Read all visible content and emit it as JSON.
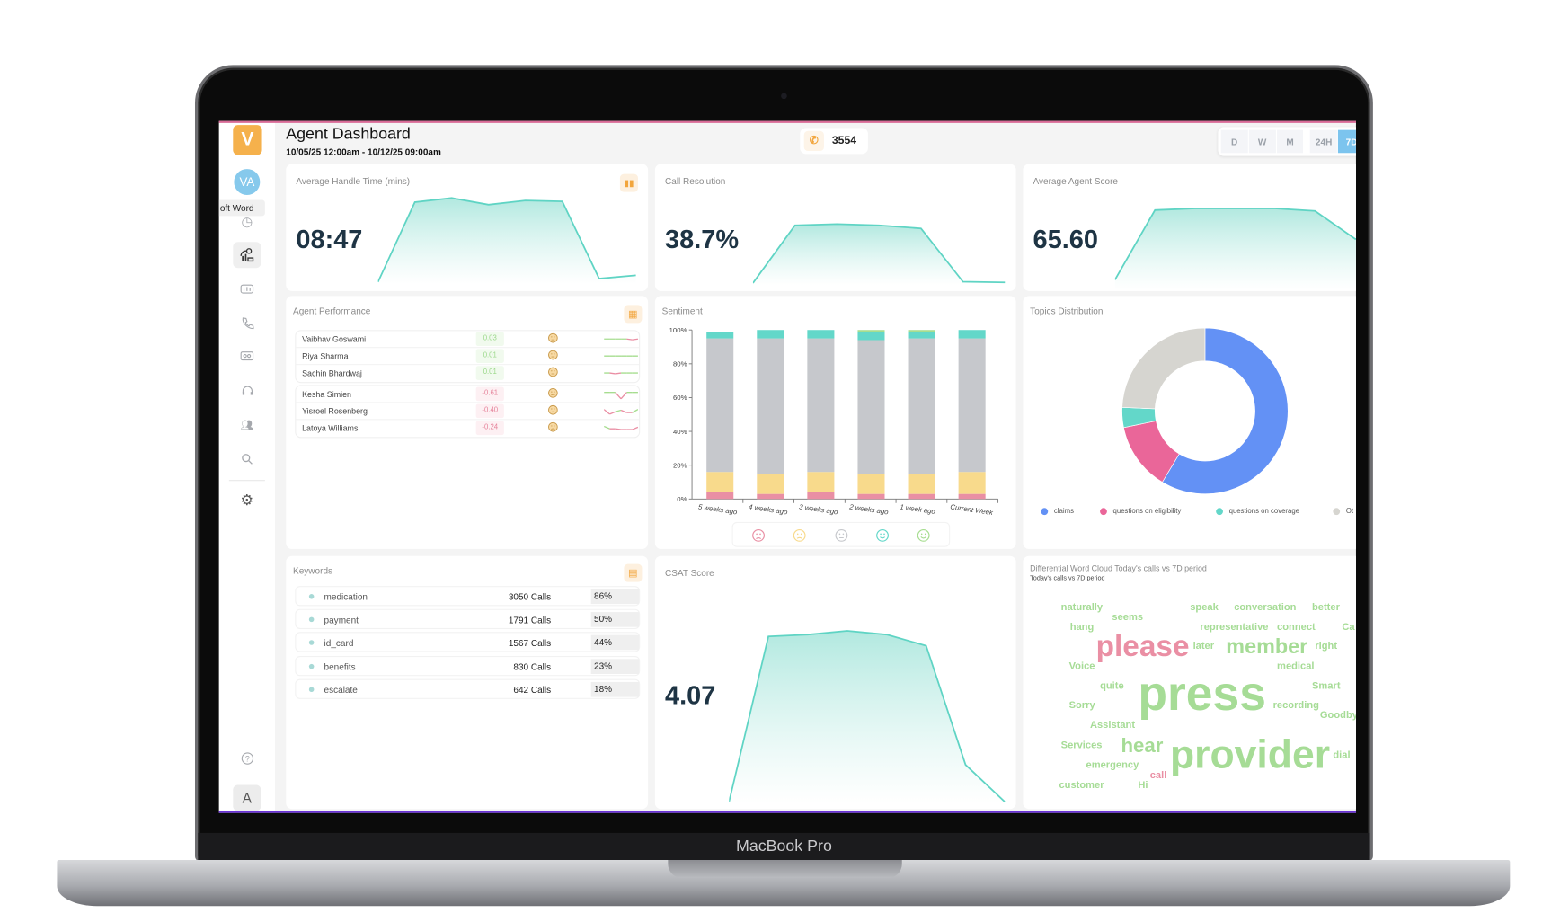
{
  "device": {
    "label": "MacBook Pro"
  },
  "sidebar": {
    "logo": "V",
    "avatar": "VA",
    "tooltip": "oft Word",
    "items": [
      {
        "icon": "clock-icon"
      },
      {
        "icon": "agent-analytics-icon",
        "active": true
      },
      {
        "icon": "chat-analytics-icon"
      },
      {
        "icon": "phone-icon"
      },
      {
        "icon": "voicemail-icon"
      },
      {
        "icon": "headset-icon"
      },
      {
        "icon": "team-icon"
      },
      {
        "icon": "search-icon"
      },
      {
        "icon": "gear-icon"
      }
    ],
    "help_icon": "help-icon",
    "user_initial": "A"
  },
  "header": {
    "title": "Agent Dashboard",
    "date_range": "10/05/25 12:00am - 10/12/25 09:00am",
    "call_count": "3554",
    "ranges": [
      "D",
      "W",
      "M",
      "24H",
      "7D"
    ],
    "active_range": "7D"
  },
  "kpis": [
    {
      "title": "Average Handle Time (mins)",
      "value": "08:47",
      "trend": [
        0,
        95,
        100,
        92,
        97,
        96,
        4,
        8
      ]
    },
    {
      "title": "Call Resolution",
      "value": "38.7%",
      "trend": [
        0,
        93,
        95,
        93,
        88,
        2,
        1
      ]
    },
    {
      "title": "Average Agent Score",
      "value": "65.60",
      "trend": [
        10,
        95,
        97,
        97,
        97,
        94,
        60,
        50
      ]
    }
  ],
  "agent_performance": {
    "title": "Agent Performance",
    "agents": [
      {
        "name": "Vaibhav Goswami",
        "score": "0.03",
        "sentiment": "neutral",
        "trend": [
          0,
          0,
          0,
          0,
          0,
          -0.1,
          0
        ]
      },
      {
        "name": "Riya Sharma",
        "score": "0.01",
        "sentiment": "neutral",
        "trend": [
          0,
          0,
          0,
          0,
          0,
          0,
          0
        ]
      },
      {
        "name": "Sachin Bhardwaj",
        "score": "0.01",
        "sentiment": "neutral",
        "trend": [
          0,
          0,
          -0.1,
          0,
          0,
          0,
          0
        ]
      },
      {
        "name": "Kesha Simien",
        "score": "-0.61",
        "sentiment": "negative",
        "trend": [
          0.2,
          0.2,
          0.2,
          -0.6,
          0.2,
          0.2,
          0.2
        ]
      },
      {
        "name": "Yisroel Rosenberg",
        "score": "-0.40",
        "sentiment": "negative",
        "trend": [
          0.2,
          -0.4,
          -0.1,
          0.1,
          -0.2,
          -0.2,
          0.2
        ]
      },
      {
        "name": "Latoya Williams",
        "score": "-0.24",
        "sentiment": "negative",
        "trend": [
          0.2,
          -0.1,
          -0.1,
          -0.2,
          -0.2,
          -0.2,
          0.1
        ]
      }
    ]
  },
  "sentiment": {
    "title": "Sentiment",
    "legend_icons": [
      "very-negative-face-icon",
      "negative-face-icon",
      "neutral-face-icon",
      "positive-face-icon",
      "very-positive-face-icon"
    ]
  },
  "chart_data": [
    {
      "type": "bar",
      "stacked": true,
      "title": "Sentiment",
      "categories": [
        "5 weeks ago",
        "4 weeks ago",
        "3 weeks ago",
        "2 weeks ago",
        "1 week ago",
        "Current Week"
      ],
      "yticks": [
        "0%",
        "20%",
        "40%",
        "60%",
        "80%",
        "100%"
      ],
      "ylim": [
        0,
        100
      ],
      "series": [
        {
          "values": [
            4,
            3,
            4,
            3,
            3,
            3
          ],
          "color": "#e98fa4"
        },
        {
          "values": [
            12,
            12,
            12,
            12,
            12,
            13
          ],
          "color": "#f8da8c"
        },
        {
          "values": [
            79,
            80,
            79,
            79,
            80,
            79
          ],
          "color": "#c6c8cc"
        },
        {
          "values": [
            4,
            5,
            5,
            5,
            4,
            5
          ],
          "color": "#63d7c9"
        },
        {
          "values": [
            0,
            0,
            0,
            1,
            1,
            0
          ],
          "color": "#a6dd8f"
        }
      ]
    },
    {
      "type": "pie",
      "donut": true,
      "title": "Topics Distribution",
      "legend_position": "bottom",
      "slices": [
        {
          "label": "claims",
          "value": 58.6,
          "color": "#6391f5"
        },
        {
          "label": "questions on eligibility",
          "value": 13.2,
          "color": "#ea6699"
        },
        {
          "label": "questions on coverage",
          "value": 3.9,
          "color": "#63d7c9"
        },
        {
          "label": "Ot",
          "value": 24.3,
          "color": "#d6d5d0"
        }
      ]
    }
  ],
  "keywords": {
    "title": "Keywords",
    "items": [
      {
        "name": "medication",
        "calls": "3050 Calls",
        "pct": "86%"
      },
      {
        "name": "payment",
        "calls": "1791 Calls",
        "pct": "50%"
      },
      {
        "name": "id_card",
        "calls": "1567 Calls",
        "pct": "44%"
      },
      {
        "name": "benefits",
        "calls": "830 Calls",
        "pct": "23%"
      },
      {
        "name": "escalate",
        "calls": "642 Calls",
        "pct": "18%"
      }
    ]
  },
  "csat": {
    "title": "CSAT Score",
    "value": "4.07",
    "trend": [
      0,
      89,
      90,
      92,
      90,
      84,
      20,
      0
    ]
  },
  "wordcloud": {
    "title": "Differential Word Cloud Today's calls vs 7D period",
    "subtitle": "Today's calls vs 7D period",
    "positive_color": "#a6dc96",
    "negative_color": "#ea8fa4",
    "words": [
      {
        "text": "naturally"
      },
      {
        "text": "seems"
      },
      {
        "text": "speak"
      },
      {
        "text": "conversation"
      },
      {
        "text": "better"
      },
      {
        "text": "hang"
      },
      {
        "text": "representative"
      },
      {
        "text": "connect"
      },
      {
        "text": "Ca"
      },
      {
        "text": "please",
        "negative": true
      },
      {
        "text": "later"
      },
      {
        "text": "member"
      },
      {
        "text": "right"
      },
      {
        "text": "Voice"
      },
      {
        "text": "medical"
      },
      {
        "text": "quite"
      },
      {
        "text": "press"
      },
      {
        "text": "Smart"
      },
      {
        "text": "Sorry"
      },
      {
        "text": "recording"
      },
      {
        "text": "Goodby"
      },
      {
        "text": "Assistant"
      },
      {
        "text": "Services"
      },
      {
        "text": "hear"
      },
      {
        "text": "provider"
      },
      {
        "text": "dial"
      },
      {
        "text": "emergency"
      },
      {
        "text": "call",
        "negative": true
      },
      {
        "text": "customer"
      },
      {
        "text": "Hi"
      }
    ]
  }
}
